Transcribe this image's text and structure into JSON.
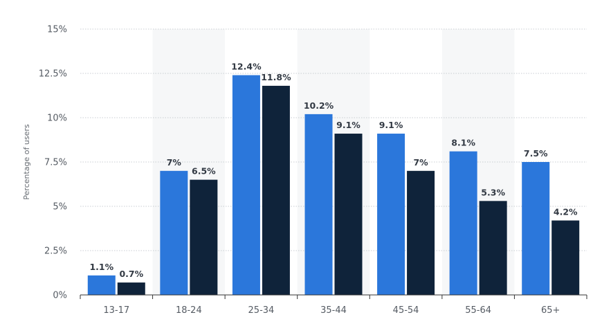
{
  "chart_data": {
    "type": "bar",
    "ylabel": "Percentage of users",
    "xlabel": "",
    "ylim": [
      0,
      15
    ],
    "ytick_values": [
      0,
      2.5,
      5,
      7.5,
      10,
      12.5,
      15
    ],
    "ytick_labels": [
      "0%",
      "2.5%",
      "5%",
      "7.5%",
      "10%",
      "12.5%",
      "15%"
    ],
    "categories": [
      "13-17",
      "18-24",
      "25-34",
      "35-44",
      "45-54",
      "55-64",
      "65+"
    ],
    "series": [
      {
        "color": "#2b77db",
        "values": [
          1.1,
          7,
          12.4,
          10.2,
          9.1,
          8.1,
          7.5
        ],
        "labels": [
          "1.1%",
          "7%",
          "12.4%",
          "10.2%",
          "9.1%",
          "8.1%",
          "7.5%"
        ]
      },
      {
        "color": "#0f233a",
        "values": [
          0.7,
          6.5,
          11.8,
          9.1,
          7,
          5.3,
          4.2
        ],
        "labels": [
          "0.7%",
          "6.5%",
          "11.8%",
          "9.1%",
          "7%",
          "5.3%",
          "4.2%"
        ]
      }
    ],
    "grid": true,
    "alternating_band_color": "#f6f7f8",
    "gridline_color": "#c8ccd1",
    "axis_color": "#333333",
    "legend": "none"
  }
}
